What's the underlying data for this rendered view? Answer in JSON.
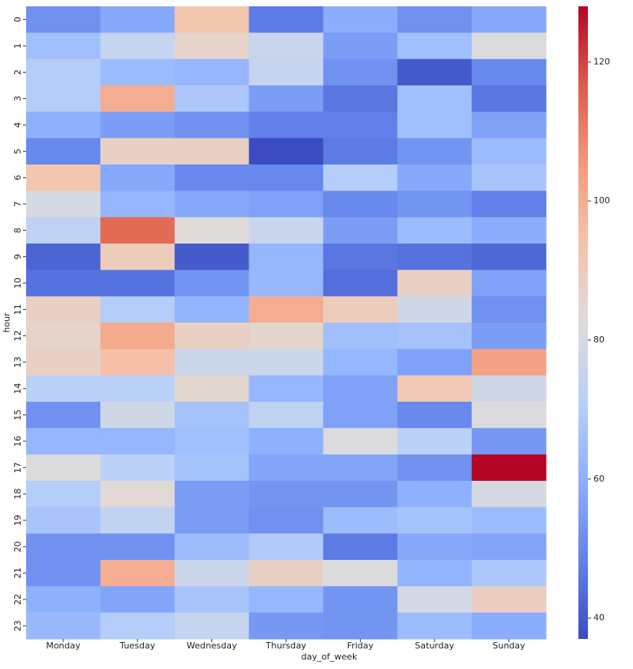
{
  "chart_data": {
    "type": "heatmap",
    "xlabel": "day_of_week",
    "ylabel": "hour",
    "x_categories": [
      "Monday",
      "Tuesday",
      "Wednesday",
      "Thursday",
      "Friday",
      "Saturday",
      "Sunday"
    ],
    "y_categories": [
      0,
      1,
      2,
      3,
      4,
      5,
      6,
      7,
      8,
      9,
      10,
      11,
      12,
      13,
      14,
      15,
      16,
      17,
      18,
      19,
      20,
      21,
      22,
      23
    ],
    "values": [
      [
        52,
        58,
        93,
        47,
        59,
        52,
        58
      ],
      [
        65,
        75,
        87,
        76,
        55,
        65,
        82
      ],
      [
        70,
        64,
        62,
        75,
        52,
        40,
        50
      ],
      [
        70,
        100,
        68,
        55,
        46,
        65,
        46
      ],
      [
        60,
        55,
        52,
        48,
        48,
        65,
        56
      ],
      [
        50,
        88,
        88,
        37,
        47,
        53,
        64
      ],
      [
        93,
        58,
        50,
        50,
        70,
        58,
        67
      ],
      [
        80,
        62,
        58,
        56,
        50,
        53,
        48
      ],
      [
        73,
        114,
        83,
        76,
        55,
        64,
        59
      ],
      [
        42,
        90,
        40,
        62,
        46,
        45,
        43
      ],
      [
        45,
        45,
        53,
        63,
        44,
        88,
        56
      ],
      [
        88,
        70,
        61,
        100,
        90,
        78,
        52
      ],
      [
        87,
        101,
        88,
        86,
        65,
        66,
        55
      ],
      [
        88,
        95,
        77,
        77,
        62,
        56,
        103
      ],
      [
        72,
        71,
        85,
        62,
        56,
        92,
        78
      ],
      [
        52,
        78,
        66,
        73,
        56,
        50,
        82
      ],
      [
        62,
        62,
        65,
        60,
        82,
        72,
        54
      ],
      [
        82,
        72,
        66,
        57,
        57,
        52,
        128
      ],
      [
        70,
        84,
        55,
        53,
        53,
        60,
        80
      ],
      [
        67,
        74,
        55,
        52,
        64,
        66,
        64
      ],
      [
        52,
        52,
        64,
        69,
        47,
        58,
        57
      ],
      [
        52,
        100,
        77,
        88,
        82,
        61,
        68
      ],
      [
        60,
        57,
        67,
        62,
        53,
        79,
        89
      ],
      [
        63,
        70,
        75,
        54,
        53,
        64,
        59
      ]
    ],
    "colormap": "coolwarm",
    "colors": [
      "#3b4cc0",
      "#6282ea",
      "#8db0fe",
      "#b9d0f9",
      "#dddcdc",
      "#f5c4ac",
      "#f49a7b",
      "#dc5d4a",
      "#b40426"
    ],
    "clim": [
      37,
      128
    ],
    "cticks": [
      40,
      60,
      80,
      100,
      120
    ]
  }
}
